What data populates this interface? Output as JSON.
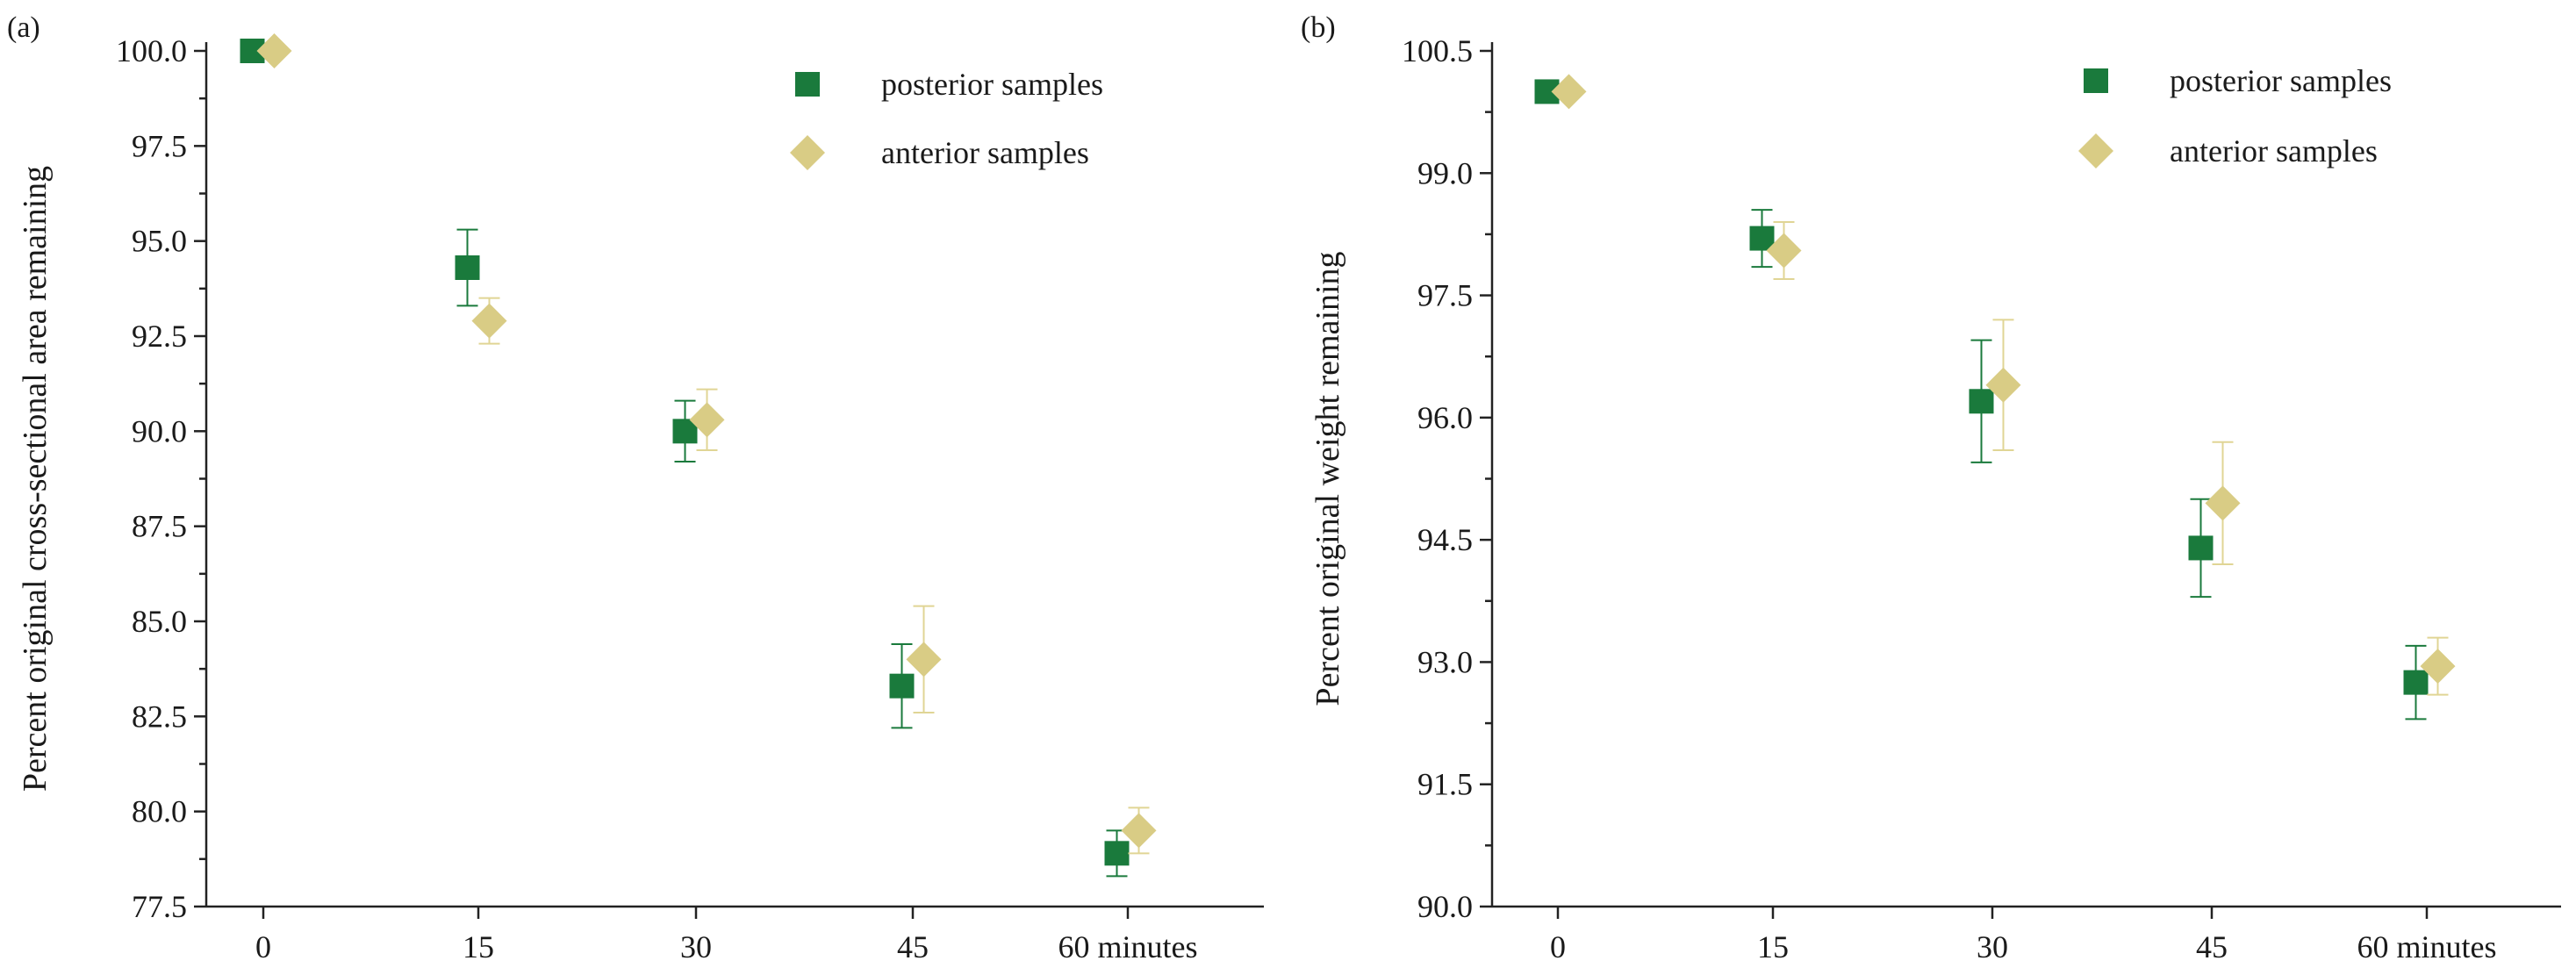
{
  "chart_data": [
    {
      "type": "scatter",
      "panel_label": "(a)",
      "ylabel": "Percent original cross-sectional area remaining",
      "xlabel": "minutes",
      "categories": [
        "0",
        "15",
        "30",
        "45",
        "60 minutes"
      ],
      "x": [
        0,
        15,
        30,
        45,
        60
      ],
      "ylim": [
        77.5,
        100.0
      ],
      "yticks": [
        "77.5",
        "80.0",
        "82.5",
        "85.0",
        "87.5",
        "90.0",
        "92.5",
        "95.0",
        "97.5",
        "100.0"
      ],
      "series": [
        {
          "name": "posterior samples",
          "marker": "square",
          "color": "#1a7a3c",
          "values": [
            100.0,
            94.3,
            90.0,
            83.3,
            78.9
          ],
          "errors": [
            0.0,
            1.0,
            0.8,
            1.1,
            0.6
          ]
        },
        {
          "name": "anterior samples",
          "marker": "diamond",
          "color": "#d9cc85",
          "values": [
            100.0,
            92.9,
            90.3,
            84.0,
            79.5
          ],
          "errors": [
            0.0,
            0.6,
            0.8,
            1.4,
            0.6
          ]
        }
      ],
      "legend": "top-right"
    },
    {
      "type": "scatter",
      "panel_label": "(b)",
      "ylabel": "Percent original weight remaining",
      "xlabel": "minutes",
      "categories": [
        "0",
        "15",
        "30",
        "45",
        "60 minutes"
      ],
      "x": [
        0,
        15,
        30,
        45,
        60
      ],
      "ylim": [
        90.0,
        100.5
      ],
      "yticks": [
        "90.0",
        "91.5",
        "93.0",
        "94.5",
        "96.0",
        "97.5",
        "99.0",
        "100.5"
      ],
      "series": [
        {
          "name": "posterior samples",
          "marker": "square",
          "color": "#1a7a3c",
          "values": [
            100.0,
            98.2,
            96.2,
            94.4,
            92.75
          ],
          "errors": [
            0.0,
            0.35,
            0.75,
            0.6,
            0.45
          ]
        },
        {
          "name": "anterior samples",
          "marker": "diamond",
          "color": "#d9cc85",
          "values": [
            100.0,
            98.05,
            96.4,
            94.95,
            92.95
          ],
          "errors": [
            0.0,
            0.35,
            0.8,
            0.75,
            0.35
          ]
        }
      ],
      "legend": "top-right"
    }
  ]
}
